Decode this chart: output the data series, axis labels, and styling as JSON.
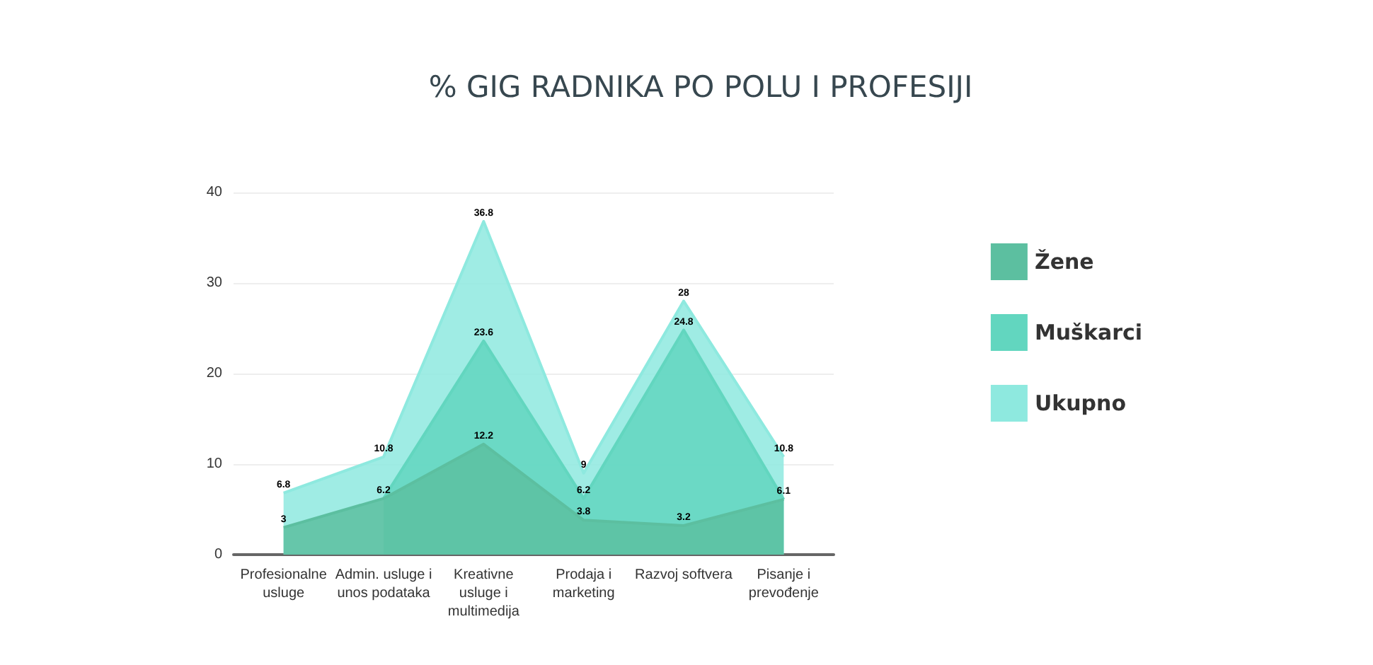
{
  "chart_data": {
    "type": "area",
    "title": "% GIG RADNIKA PO POLU I PROFESIJI",
    "categories": [
      "Profesionalne\nusluge",
      "Admin. usluge i\nunos podataka",
      "Kreativne\nusluge i\nmultimedija",
      "Prodaja i\nmarketing",
      "Razvoj softvera",
      "Pisanje i\nprevođenje"
    ],
    "series": [
      {
        "name": "Žene",
        "color": "#5cbfa0",
        "values": [
          3,
          6.2,
          12.2,
          3.8,
          3.2,
          6.1
        ],
        "value_labels": [
          "3",
          null,
          "12.2",
          "3.8",
          "3.2",
          null
        ]
      },
      {
        "name": "Muškarci",
        "color": "#62d6bf",
        "values": [
          null,
          6.2,
          23.6,
          6.2,
          24.8,
          6.1
        ],
        "value_labels": [
          null,
          "6.2",
          "23.6",
          "6.2",
          "24.8",
          "6.1"
        ]
      },
      {
        "name": "Ukupno",
        "color": "#8ee9df",
        "values": [
          6.8,
          10.8,
          36.8,
          9,
          28,
          10.8
        ],
        "value_labels": [
          "6.8",
          "10.8",
          "36.8",
          "9",
          "28",
          "10.8"
        ]
      }
    ],
    "ylim": [
      0,
      40
    ],
    "yticks": [
      0,
      10,
      20,
      30,
      40
    ],
    "grid": "y",
    "legend": "right"
  }
}
